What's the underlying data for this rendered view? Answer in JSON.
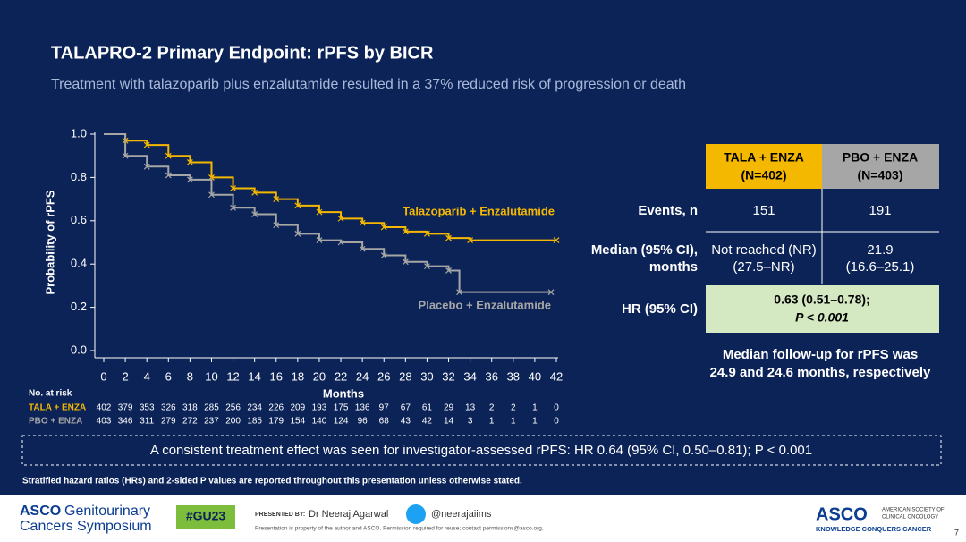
{
  "title": "TALAPRO-2 Primary Endpoint: rPFS by BICR",
  "subtitle": "Treatment with talazoparib plus enzalutamide resulted in a 37% reduced risk of progression or death",
  "chart_data": {
    "type": "step",
    "xlabel": "Months",
    "ylabel": "Probability of rPFS",
    "xlim": [
      0,
      42
    ],
    "xticks": [
      0,
      2,
      4,
      6,
      8,
      10,
      12,
      14,
      16,
      18,
      20,
      22,
      24,
      26,
      28,
      30,
      32,
      34,
      36,
      38,
      40,
      42
    ],
    "ylim": [
      0,
      1
    ],
    "yticks": [
      {
        "value": 0,
        "label": "0.0"
      },
      0.2,
      0.4,
      0.6,
      0.8,
      {
        "value": 1,
        "label": "1.0"
      }
    ],
    "series": [
      {
        "name": "Talazoparib + Enzalutamide",
        "color": "#f5b800",
        "x": [
          0,
          2,
          4,
          6,
          8,
          10,
          12,
          14,
          16,
          18,
          20,
          22,
          24,
          26,
          28,
          30,
          32,
          34,
          42
        ],
        "values": [
          1,
          0.97,
          0.95,
          0.9,
          0.87,
          0.8,
          0.75,
          0.73,
          0.7,
          0.67,
          0.64,
          0.61,
          0.59,
          0.57,
          0.55,
          0.54,
          0.52,
          0.51,
          0.51
        ]
      },
      {
        "name": "Placebo + Enzalutamide",
        "color": "#a6a6a6",
        "x": [
          0,
          2,
          4,
          6,
          8,
          10,
          12,
          14,
          16,
          18,
          20,
          22,
          24,
          26,
          28,
          30,
          32,
          33,
          41.5
        ],
        "values": [
          1,
          0.9,
          0.85,
          0.81,
          0.79,
          0.72,
          0.66,
          0.63,
          0.58,
          0.54,
          0.51,
          0.5,
          0.47,
          0.44,
          0.41,
          0.39,
          0.37,
          0.27,
          0.27
        ]
      }
    ],
    "risk_table": {
      "title": "No. at risk",
      "rows": [
        {
          "name": "TALA + ENZA",
          "values": [
            402,
            379,
            353,
            326,
            318,
            285,
            256,
            234,
            226,
            209,
            193,
            175,
            136,
            97,
            67,
            61,
            29,
            13,
            2,
            2,
            1,
            0
          ]
        },
        {
          "name": "PBO + ENZA",
          "values": [
            403,
            346,
            311,
            279,
            272,
            237,
            200,
            185,
            179,
            154,
            140,
            124,
            96,
            68,
            43,
            42,
            14,
            3,
            1,
            1,
            1,
            0
          ]
        }
      ]
    }
  },
  "table": {
    "headers": [
      [
        "TALA + ENZA",
        "(N=402)"
      ],
      [
        "PBO + ENZA",
        "(N=403)"
      ]
    ],
    "rows": [
      {
        "label": [
          "Events, n"
        ],
        "cells": [
          [
            "151"
          ],
          [
            "191"
          ]
        ]
      },
      {
        "label": [
          "Median (95% CI),",
          "months"
        ],
        "cells": [
          [
            "Not reached (NR)",
            "(27.5–NR)"
          ],
          [
            "21.9",
            "(16.6–25.1)"
          ]
        ]
      },
      {
        "label": [
          "HR (95% CI)"
        ],
        "merged": [
          "0.63 (0.51–0.78);",
          "P < 0.001"
        ]
      }
    ]
  },
  "follow_up": [
    "Median follow-up for rPFS was",
    "24.9 and 24.6 months, respectively"
  ],
  "callout": "A consistent treatment effect was seen for investigator-assessed rPFS: HR 0.64 (95% CI, 0.50–0.81); P < 0.001",
  "footnote": "Stratified hazard ratios (HRs) and 2-sided P values are reported throughout this presentation unless otherwise stated.",
  "footer": {
    "brand": "ASCO",
    "brand_line1": "Genitourinary",
    "brand_line2": "Cancers Symposium",
    "hashtag": "#GU23",
    "presented_by": "PRESENTED BY:",
    "presenter": "Dr Neeraj Agarwal",
    "handle": "@neerajaiims",
    "notice": "Presentation is property of the author and ASCO. Permission required for reuse; contact permissions@asco.org.",
    "logo": "ASCO",
    "society1": "AMERICAN SOCIETY OF",
    "society2": "CLINICAL ONCOLOGY",
    "tagline": "KNOWLEDGE CONQUERS CANCER",
    "page": "7"
  }
}
